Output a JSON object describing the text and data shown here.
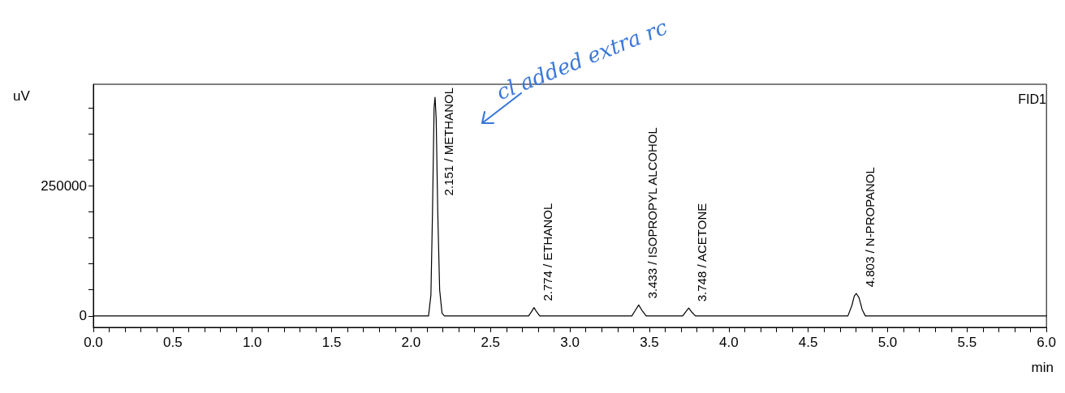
{
  "chart_data": {
    "type": "line",
    "xlabel": "min",
    "ylabel": "uV",
    "x": [
      0,
      2.1,
      2.11,
      2.125,
      2.135,
      2.145,
      2.151,
      2.158,
      2.168,
      2.18,
      2.195,
      2.21,
      2.74,
      2.76,
      2.774,
      2.79,
      2.81,
      3.39,
      3.41,
      3.433,
      3.455,
      3.48,
      3.71,
      3.73,
      3.748,
      3.765,
      3.79,
      4.75,
      4.775,
      4.79,
      4.803,
      4.82,
      4.84,
      4.86,
      6.0
    ],
    "series": [
      {
        "color": "#000000",
        "values": [
          0,
          0,
          0,
          40000,
          200000,
          400000,
          420000,
          380000,
          200000,
          50000,
          5000,
          0,
          0,
          9000,
          16000,
          8000,
          0,
          0,
          10000,
          21000,
          10000,
          0,
          0,
          8000,
          15000,
          8000,
          0,
          0,
          20000,
          38000,
          43000,
          35000,
          12000,
          0,
          0
        ]
      }
    ],
    "xlim": [
      0,
      6
    ],
    "xticks": [
      {
        "value": 0,
        "label": "0.0"
      },
      {
        "value": 0.1,
        "label": null
      },
      {
        "value": 0.2,
        "label": null
      },
      {
        "value": 0.3,
        "label": null
      },
      {
        "value": 0.4,
        "label": null
      },
      {
        "value": 0.5,
        "label": "0.5"
      },
      {
        "value": 0.6,
        "label": null
      },
      {
        "value": 0.7,
        "label": null
      },
      {
        "value": 0.8,
        "label": null
      },
      {
        "value": 0.9,
        "label": null
      },
      {
        "value": 1,
        "label": "1.0"
      },
      {
        "value": 1.1,
        "label": null
      },
      {
        "value": 1.2,
        "label": null
      },
      {
        "value": 1.3,
        "label": null
      },
      {
        "value": 1.4,
        "label": null
      },
      {
        "value": 1.5,
        "label": "1.5"
      },
      {
        "value": 1.6,
        "label": null
      },
      {
        "value": 1.7,
        "label": null
      },
      {
        "value": 1.8,
        "label": null
      },
      {
        "value": 1.9,
        "label": null
      },
      {
        "value": 2,
        "label": "2.0"
      },
      {
        "value": 2.1,
        "label": null
      },
      {
        "value": 2.2,
        "label": null
      },
      {
        "value": 2.3,
        "label": null
      },
      {
        "value": 2.4,
        "label": null
      },
      {
        "value": 2.5,
        "label": "2.5"
      },
      {
        "value": 2.6,
        "label": null
      },
      {
        "value": 2.7,
        "label": null
      },
      {
        "value": 2.8,
        "label": null
      },
      {
        "value": 2.9,
        "label": null
      },
      {
        "value": 3,
        "label": "3.0"
      },
      {
        "value": 3.1,
        "label": null
      },
      {
        "value": 3.2,
        "label": null
      },
      {
        "value": 3.3,
        "label": null
      },
      {
        "value": 3.4,
        "label": null
      },
      {
        "value": 3.5,
        "label": "3.5"
      },
      {
        "value": 3.6,
        "label": null
      },
      {
        "value": 3.7,
        "label": null
      },
      {
        "value": 3.8,
        "label": null
      },
      {
        "value": 3.9,
        "label": null
      },
      {
        "value": 4,
        "label": "4.0"
      },
      {
        "value": 4.1,
        "label": null
      },
      {
        "value": 4.2,
        "label": null
      },
      {
        "value": 4.3,
        "label": null
      },
      {
        "value": 4.4,
        "label": null
      },
      {
        "value": 4.5,
        "label": "4.5"
      },
      {
        "value": 4.6,
        "label": null
      },
      {
        "value": 4.7,
        "label": null
      },
      {
        "value": 4.8,
        "label": null
      },
      {
        "value": 4.9,
        "label": null
      },
      {
        "value": 5,
        "label": "5.0"
      },
      {
        "value": 5.1,
        "label": null
      },
      {
        "value": 5.2,
        "label": null
      },
      {
        "value": 5.3,
        "label": null
      },
      {
        "value": 5.4,
        "label": null
      },
      {
        "value": 5.5,
        "label": "5.5"
      },
      {
        "value": 5.6,
        "label": null
      },
      {
        "value": 5.7,
        "label": null
      },
      {
        "value": 5.8,
        "label": null
      },
      {
        "value": 5.9,
        "label": null
      },
      {
        "value": 6,
        "label": "6.0"
      }
    ],
    "ylim": [
      -22000,
      445000
    ],
    "yticks": [
      0,
      {
        "value": 50000,
        "label": null
      },
      {
        "value": 100000,
        "label": null
      },
      {
        "value": 150000,
        "label": null
      },
      {
        "value": 200000,
        "label": null
      },
      250000,
      {
        "value": 300000,
        "label": null
      },
      {
        "value": 350000,
        "label": null
      },
      {
        "value": 400000,
        "label": null
      }
    ],
    "grid": false,
    "marker": "none",
    "line_style": "solid",
    "annotations": [
      {
        "text": "2.151 / METHANOL",
        "x": 2.151,
        "y": 420000
      },
      {
        "text": "2.774 / ETHANOL",
        "x": 2.774,
        "y": 16000
      },
      {
        "text": "3.433 / ISOPROPYL ALCOHOL",
        "x": 3.433,
        "y": 21000
      },
      {
        "text": "3.748 / ACETONE",
        "x": 3.748,
        "y": 15000
      },
      {
        "text": "4.803 / N-PROPANOL",
        "x": 4.803,
        "y": 43000
      },
      "FID1",
      "cl added extra rc"
    ]
  }
}
